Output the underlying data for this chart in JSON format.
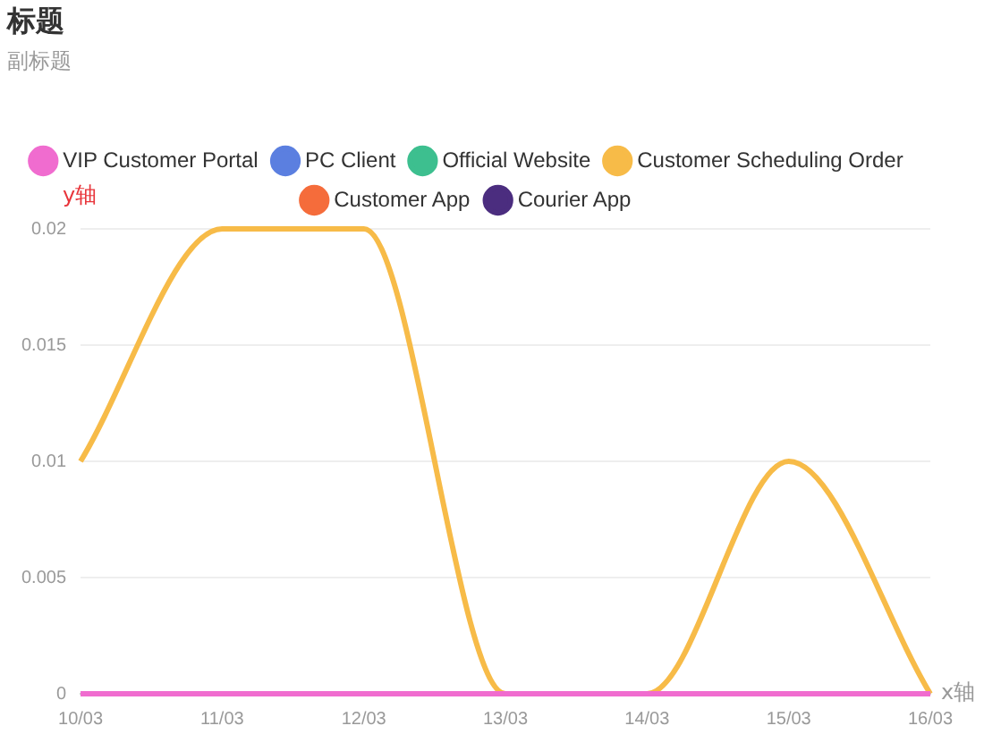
{
  "chart_data": {
    "type": "line",
    "title": "标题",
    "subtitle": "副标题",
    "xlabel": "x轴",
    "ylabel": "y轴",
    "categories": [
      "10/03",
      "11/03",
      "12/03",
      "13/03",
      "14/03",
      "15/03",
      "16/03"
    ],
    "series": [
      {
        "name": "Courier App",
        "color": "#4b2d7f",
        "values": [
          null,
          null,
          null,
          null,
          null,
          null,
          null
        ]
      },
      {
        "name": "Customer App",
        "color": "#f56c3b",
        "values": [
          null,
          null,
          null,
          null,
          null,
          null,
          null
        ]
      },
      {
        "name": "Customer Scheduling Order",
        "color": "#f7bb48",
        "values": [
          0.01,
          0.02,
          0.02,
          0,
          0,
          0.01,
          0
        ]
      },
      {
        "name": "Official Website",
        "color": "#3dbf8f",
        "values": [
          null,
          null,
          null,
          null,
          null,
          null,
          null
        ]
      },
      {
        "name": "PC Client",
        "color": "#5b7fe0",
        "values": [
          null,
          null,
          null,
          null,
          null,
          null,
          null
        ]
      },
      {
        "name": "VIP Customer Portal",
        "color": "#f06ccf",
        "values": [
          0,
          0,
          0,
          0,
          0,
          0,
          0
        ]
      }
    ],
    "ylim": [
      0,
      0.02
    ],
    "yticks": [
      0,
      0.005,
      0.01,
      0.015,
      0.02
    ],
    "grid": "y",
    "legend": "top",
    "marker": "none",
    "line_style": "solid"
  }
}
